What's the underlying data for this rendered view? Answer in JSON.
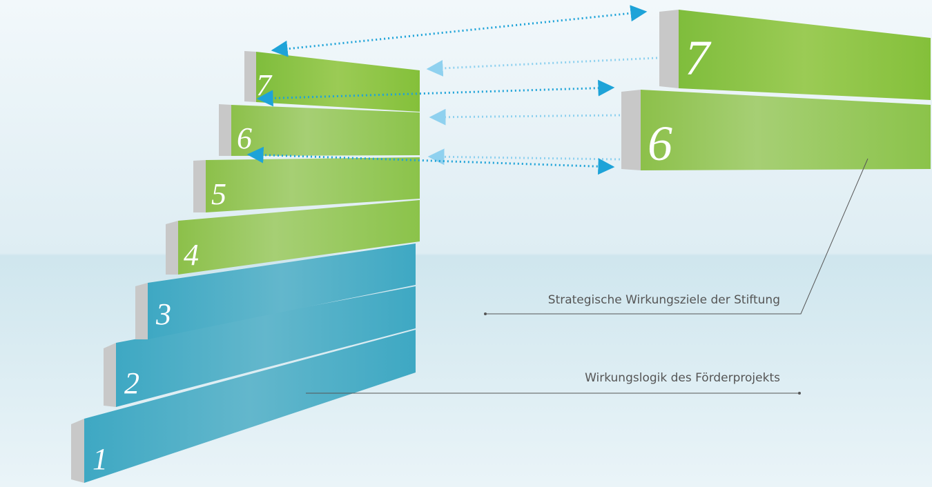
{
  "left_steps": [
    {
      "label": "1"
    },
    {
      "label": "2"
    },
    {
      "label": "3"
    },
    {
      "label": "4"
    },
    {
      "label": "5"
    },
    {
      "label": "6"
    },
    {
      "label": "7"
    }
  ],
  "right_steps": [
    {
      "label": "7"
    },
    {
      "label": "6"
    }
  ],
  "annotations": {
    "strategic": "Strategische Wirkungsziele der Stiftung",
    "project": "Wirkungslogik des Förderprojekts"
  }
}
